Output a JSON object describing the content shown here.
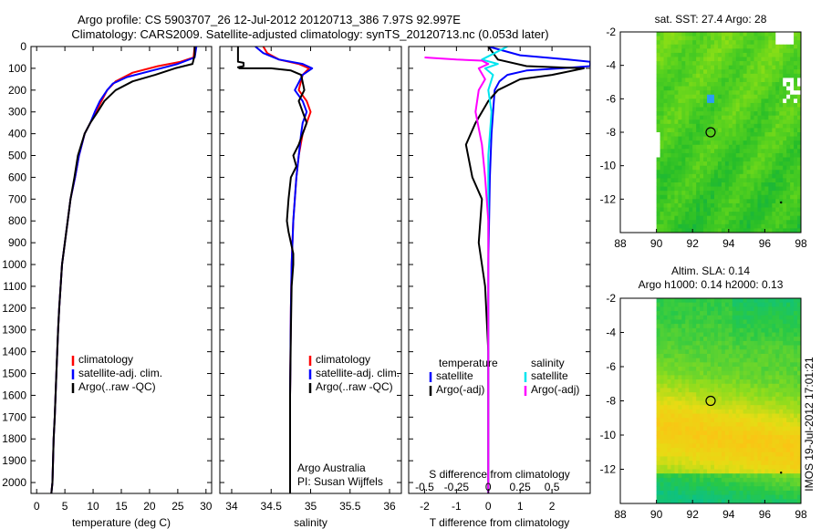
{
  "title_line1": "Argo profile: CS 5903707_26 12-Jul-2012 20120713_386 7.97S 92.997E",
  "title_line2": "Climatology: CARS2009. Satellite-adjusted climatology: synTS_20120713.nc (0.053d later)",
  "side_stamp": "IMOS 19-Jul-2012 17:01:21",
  "colors": {
    "climatology": "#ff0000",
    "satellite": "#0000ff",
    "argo": "#000000",
    "sat_salinity": "#00e5ee",
    "argo_salinity": "#ff00ff"
  },
  "chart_data": [
    {
      "type": "line",
      "id": "temperature",
      "xlabel": "temperature (deg C)",
      "ylabel": "",
      "xlim": [
        -1,
        31
      ],
      "ylim": [
        2050,
        0
      ],
      "xticks": [
        0,
        5,
        10,
        15,
        20,
        25,
        30
      ],
      "yticks": [
        0,
        100,
        200,
        300,
        400,
        500,
        600,
        700,
        800,
        900,
        1000,
        1100,
        1200,
        1300,
        1400,
        1500,
        1600,
        1700,
        1800,
        1900,
        2000
      ],
      "legend": [
        "climatology",
        "satellite-adj. clim.",
        "Argo(..raw -QC)"
      ],
      "series": [
        {
          "name": "climatology",
          "color": "#ff0000",
          "x": [
            28.0,
            27.8,
            25.5,
            21.5,
            17.0,
            14.0,
            12.5,
            11.5,
            10.5,
            9.5,
            8.5,
            7.5,
            6.8,
            6.0,
            5.5,
            5.0,
            4.5,
            4.0,
            3.8,
            3.5,
            3.2,
            3.0,
            2.8,
            2.6
          ],
          "y": [
            0,
            50,
            70,
            90,
            120,
            160,
            200,
            250,
            300,
            350,
            400,
            500,
            600,
            700,
            800,
            900,
            1000,
            1200,
            1300,
            1500,
            1700,
            1800,
            2000,
            2050
          ]
        },
        {
          "name": "satellite-adj. clim.",
          "color": "#0000ff",
          "x": [
            28.3,
            28.0,
            25.0,
            20.5,
            16.0,
            13.5,
            12.5,
            11.2,
            10.3,
            9.5,
            8.5,
            7.5,
            6.8,
            6.0,
            5.5,
            5.0,
            4.5,
            4.0,
            3.8,
            3.5,
            3.2,
            3.0,
            2.8,
            2.6
          ],
          "y": [
            0,
            50,
            80,
            110,
            140,
            170,
            200,
            250,
            300,
            350,
            400,
            500,
            600,
            700,
            800,
            900,
            1000,
            1200,
            1300,
            1500,
            1700,
            1800,
            2000,
            2050
          ]
        },
        {
          "name": "Argo(..raw -QC)",
          "color": "#000000",
          "x": [
            28.0,
            28.0,
            27.6,
            24.5,
            21.0,
            17.0,
            14.0,
            12.0,
            10.8,
            9.5,
            8.5,
            7.3,
            6.7,
            6.0,
            5.5,
            5.0,
            4.5,
            4.0,
            3.8,
            3.5,
            3.2,
            3.0,
            2.8,
            2.6
          ],
          "y": [
            0,
            40,
            80,
            100,
            130,
            160,
            200,
            250,
            300,
            350,
            400,
            500,
            600,
            700,
            800,
            900,
            1000,
            1200,
            1300,
            1500,
            1700,
            1800,
            2000,
            2050
          ]
        }
      ]
    },
    {
      "type": "line",
      "id": "salinity",
      "xlabel": "salinity",
      "ylabel": "",
      "xlim": [
        33.85,
        36.15
      ],
      "ylim": [
        2050,
        0
      ],
      "xticks": [
        34,
        34.5,
        35,
        35.5,
        36
      ],
      "legend": [
        "climatology",
        "satellite-adj. clim.",
        "Argo(..raw -QC)"
      ],
      "annotations": [
        "Argo Australia",
        "PI: Susan Wijffels"
      ],
      "series": [
        {
          "name": "climatology",
          "color": "#ff0000",
          "x": [
            34.4,
            34.45,
            34.6,
            34.85,
            34.98,
            34.9,
            34.85,
            34.95,
            35.0,
            34.95,
            34.9,
            34.85,
            34.82,
            34.8,
            34.78,
            34.76,
            34.75,
            34.74,
            34.74
          ],
          "y": [
            0,
            30,
            60,
            80,
            100,
            130,
            200,
            250,
            300,
            350,
            400,
            500,
            600,
            700,
            800,
            1000,
            1200,
            1600,
            2050
          ]
        },
        {
          "name": "satellite-adj. clim.",
          "color": "#0000ff",
          "x": [
            34.3,
            34.4,
            34.6,
            34.9,
            35.02,
            34.9,
            34.8,
            34.9,
            34.95,
            34.9,
            34.88,
            34.85,
            34.82,
            34.8,
            34.78,
            34.76,
            34.75,
            34.74,
            34.74
          ],
          "y": [
            0,
            30,
            60,
            80,
            100,
            130,
            200,
            250,
            300,
            350,
            400,
            500,
            600,
            700,
            800,
            1000,
            1200,
            1600,
            2050
          ]
        },
        {
          "name": "Argo(..raw -QC)",
          "color": "#000000",
          "x": [
            34.08,
            34.08,
            34.15,
            34.15,
            34.08,
            34.1,
            34.5,
            34.75,
            34.88,
            34.92,
            34.85,
            34.9,
            34.95,
            34.9,
            34.85,
            34.78,
            34.82,
            34.75,
            34.72,
            34.7,
            34.72,
            34.75,
            34.78,
            34.78,
            34.76,
            34.75,
            34.74,
            34.74
          ],
          "y": [
            0,
            70,
            75,
            90,
            95,
            100,
            100,
            110,
            130,
            200,
            250,
            300,
            350,
            400,
            450,
            500,
            550,
            600,
            700,
            800,
            850,
            900,
            950,
            1000,
            1100,
            1300,
            1600,
            2050
          ]
        }
      ]
    },
    {
      "type": "line",
      "id": "difference",
      "xlabel": "T difference from climatology",
      "xlabel_top": "S difference from climatology",
      "ylabel": "",
      "xlim": [
        -2.5,
        3.2
      ],
      "ylim": [
        2050,
        0
      ],
      "xticks": [
        -2,
        -1,
        0,
        1,
        2
      ],
      "top_ticks": [
        "-0.5",
        "-0.25",
        "0",
        "0.25",
        "0.5"
      ],
      "top_tick_values": [
        -2,
        -1,
        0,
        1,
        2
      ],
      "legend_temperature_title": "temperature",
      "legend_salinity_title": "salinity",
      "legend": [
        "satellite",
        "Argo(-adj)",
        "satellite",
        "Argo(-adj)"
      ],
      "series": [
        {
          "name": "satellite",
          "color": "#0000ff",
          "x": [
            0.0,
            1.0,
            2.5,
            3.2,
            3.2,
            2.3,
            1.2,
            0.6,
            0.35,
            0.2,
            0.15,
            0.1,
            0.05,
            0.0,
            0.0,
            0.0
          ],
          "y": [
            0,
            40,
            60,
            70,
            90,
            100,
            110,
            130,
            160,
            200,
            300,
            400,
            600,
            1000,
            1500,
            2050
          ]
        },
        {
          "name": "Argo(-adj)",
          "color": "#000000",
          "x": [
            0.0,
            0.3,
            1.2,
            3.0,
            2.0,
            1.0,
            0.3,
            0.0,
            -0.4,
            -0.7,
            -0.5,
            -0.2,
            -0.3,
            -0.1,
            0.0,
            0.0,
            0.0
          ],
          "y": [
            0,
            60,
            90,
            100,
            130,
            150,
            200,
            250,
            350,
            450,
            600,
            700,
            900,
            1100,
            1400,
            1800,
            2050
          ]
        },
        {
          "name": "satellite",
          "color": "#00e5ee",
          "x": [
            0.6,
            0.2,
            -0.2,
            0.3,
            -0.1,
            0.15,
            0.0,
            0.1,
            0.0,
            0.0,
            0.0,
            0.0
          ],
          "y": [
            0,
            30,
            60,
            80,
            100,
            130,
            200,
            300,
            500,
            1000,
            1500,
            2050
          ]
        },
        {
          "name": "Argo(-adj)",
          "color": "#ff00ff",
          "x": [
            -2.0,
            -1.0,
            -0.2,
            0.0,
            -0.3,
            -0.1,
            -0.3,
            -0.4,
            -0.2,
            -0.1,
            0.0,
            0.0,
            0.0
          ],
          "y": [
            50,
            60,
            65,
            80,
            100,
            150,
            200,
            300,
            450,
            600,
            800,
            1000,
            2050
          ]
        }
      ]
    },
    {
      "type": "heatmap",
      "id": "sst-map",
      "title": "sat. SST: 27.4 Argo: 28",
      "xlim": [
        88,
        98
      ],
      "ylim": [
        -14,
        -2
      ],
      "xticks": [
        88,
        90,
        92,
        94,
        96,
        98
      ],
      "yticks": [
        -2,
        -4,
        -6,
        -8,
        -10,
        -12
      ],
      "argo_position": [
        93,
        -8
      ]
    },
    {
      "type": "heatmap",
      "id": "sla-map",
      "title_line1": "Altim. SLA: 0.14",
      "title_line2": "Argo h1000: 0.14 h2000: 0.13",
      "xlim": [
        88,
        98
      ],
      "ylim": [
        -14,
        -2
      ],
      "xticks": [
        88,
        90,
        92,
        94,
        96,
        98
      ],
      "yticks": [
        -2,
        -4,
        -6,
        -8,
        -10,
        -12
      ],
      "argo_position": [
        93,
        -8
      ]
    }
  ]
}
